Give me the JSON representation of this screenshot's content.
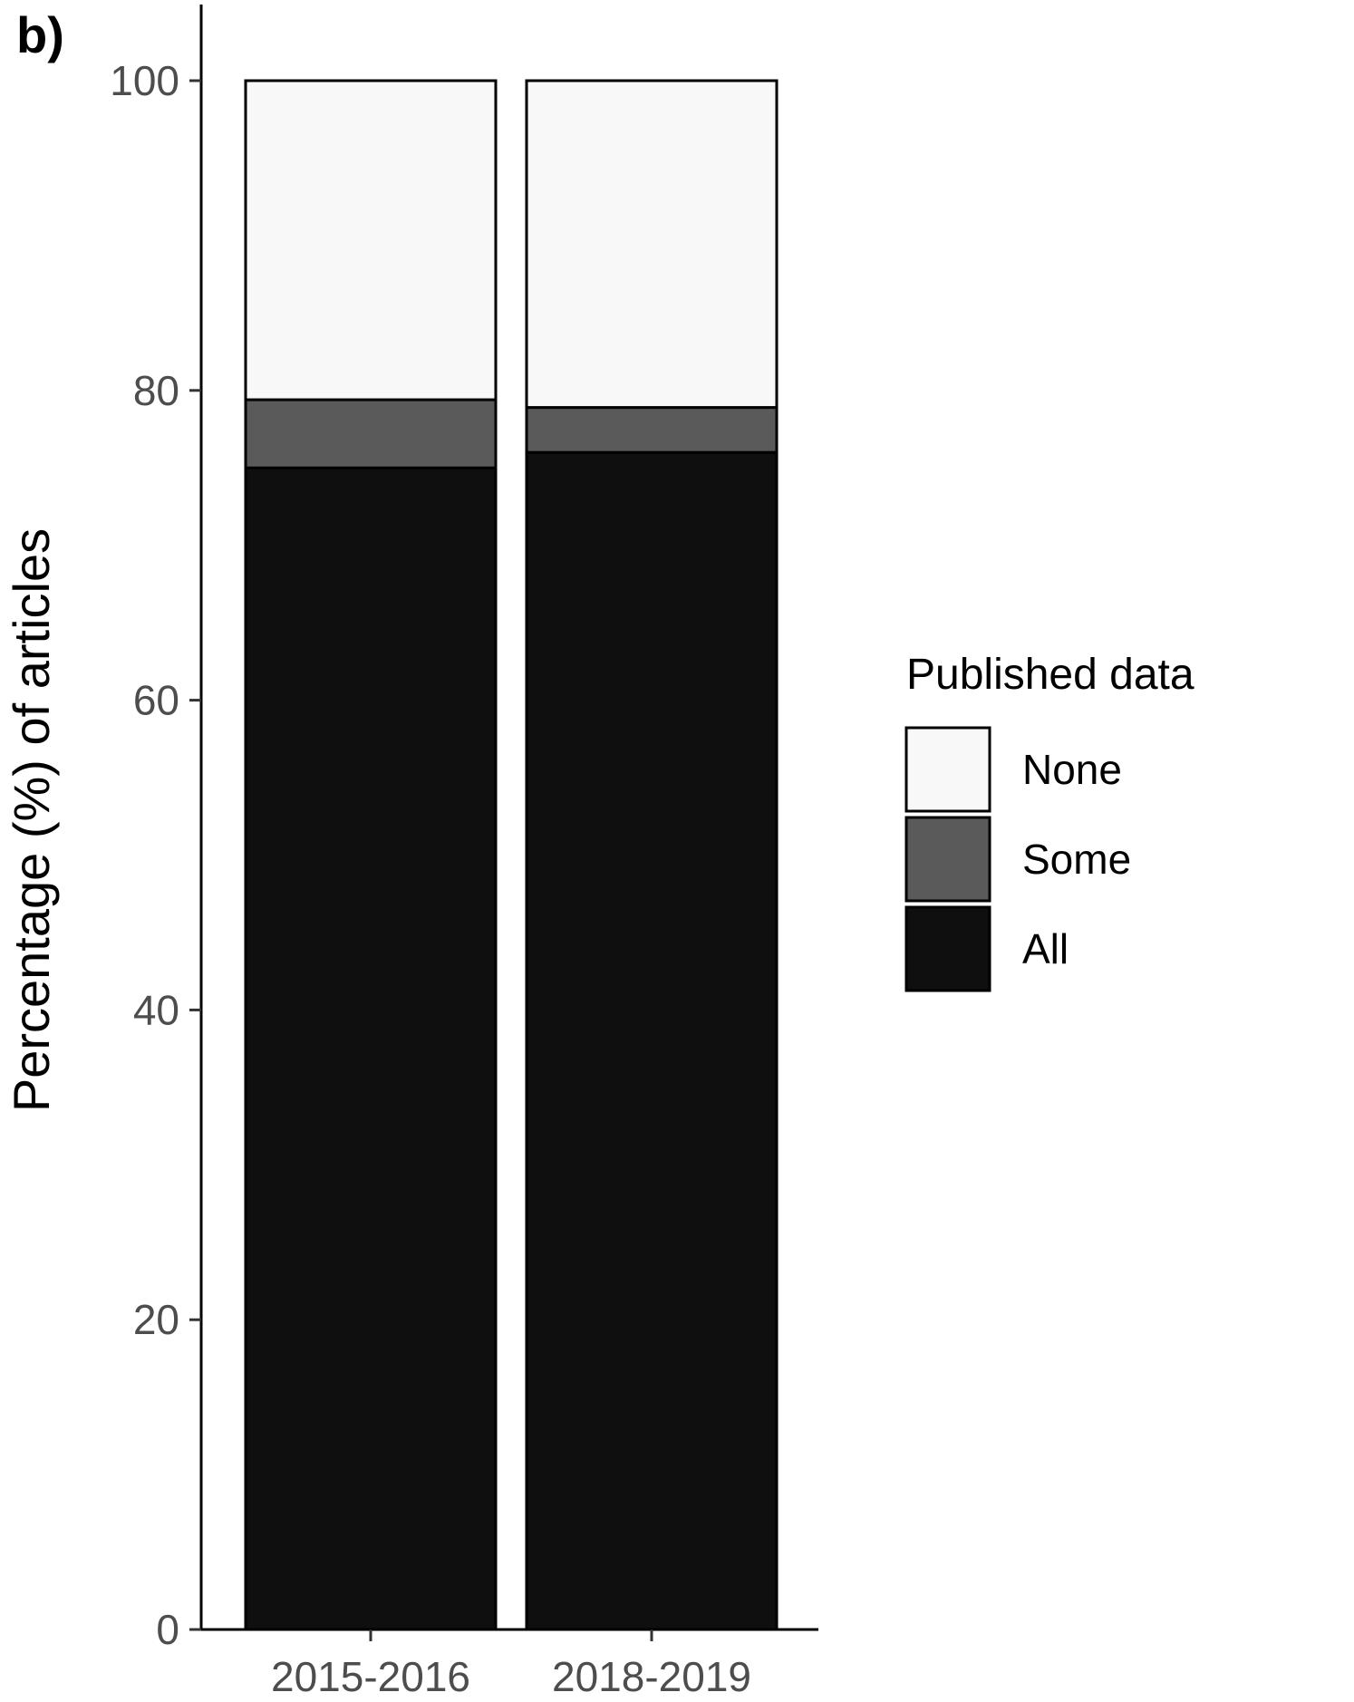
{
  "panel_label": "b)",
  "chart_data": {
    "type": "bar",
    "stacked": true,
    "categories": [
      "2015-2016",
      "2018-2019"
    ],
    "series": [
      {
        "name": "All",
        "values": [
          75.0,
          76.0
        ],
        "color": "#0f0f0f"
      },
      {
        "name": "Some",
        "values": [
          4.4,
          2.9
        ],
        "color": "#5a5a5a"
      },
      {
        "name": "None",
        "values": [
          20.6,
          21.1
        ],
        "color": "#f8f8f8"
      }
    ],
    "ylabel": "Percentage (%) of articles",
    "xlabel": "",
    "ylim": [
      0,
      100
    ],
    "yticks": [
      "0",
      "20",
      "40",
      "60",
      "80",
      "100"
    ],
    "grid": false,
    "legend": {
      "title": "Published data",
      "position": "right",
      "items": [
        "None",
        "Some",
        "All"
      ]
    }
  }
}
